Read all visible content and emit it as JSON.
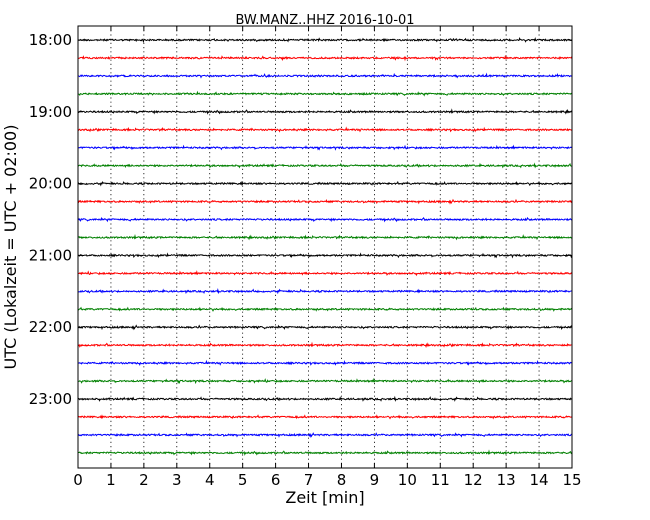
{
  "chart_data": {
    "type": "line",
    "title": "BW.MANZ..HHZ 2016-10-01",
    "xlabel": "Zeit  [min]",
    "ylabel": "UTC (Lokalzeit = UTC + 02:00)",
    "xlim": [
      0,
      15
    ],
    "x_ticks": [
      "0",
      "1",
      "2",
      "3",
      "4",
      "5",
      "6",
      "7",
      "8",
      "9",
      "10",
      "11",
      "12",
      "13",
      "14",
      "15"
    ],
    "y_tick_labels": [
      "18:00",
      "19:00",
      "20:00",
      "21:00",
      "22:00",
      "23:00"
    ],
    "grid": "x-dotted",
    "trace_colors": [
      "#000000",
      "#ff0000",
      "#0000ff",
      "#008000"
    ],
    "traces": [
      {
        "start": "18:00",
        "color": "#000000"
      },
      {
        "start": "18:15",
        "color": "#ff0000"
      },
      {
        "start": "18:30",
        "color": "#0000ff"
      },
      {
        "start": "18:45",
        "color": "#008000"
      },
      {
        "start": "19:00",
        "color": "#000000"
      },
      {
        "start": "19:15",
        "color": "#ff0000"
      },
      {
        "start": "19:30",
        "color": "#0000ff"
      },
      {
        "start": "19:45",
        "color": "#008000"
      },
      {
        "start": "20:00",
        "color": "#000000"
      },
      {
        "start": "20:15",
        "color": "#ff0000"
      },
      {
        "start": "20:30",
        "color": "#0000ff"
      },
      {
        "start": "20:45",
        "color": "#008000"
      },
      {
        "start": "21:00",
        "color": "#000000"
      },
      {
        "start": "21:15",
        "color": "#ff0000"
      },
      {
        "start": "21:30",
        "color": "#0000ff"
      },
      {
        "start": "21:45",
        "color": "#008000"
      },
      {
        "start": "22:00",
        "color": "#000000"
      },
      {
        "start": "22:15",
        "color": "#ff0000"
      },
      {
        "start": "22:30",
        "color": "#0000ff"
      },
      {
        "start": "22:45",
        "color": "#008000"
      },
      {
        "start": "23:00",
        "color": "#000000"
      },
      {
        "start": "23:15",
        "color": "#ff0000"
      },
      {
        "start": "23:30",
        "color": "#0000ff"
      },
      {
        "start": "23:45",
        "color": "#008000"
      }
    ]
  }
}
